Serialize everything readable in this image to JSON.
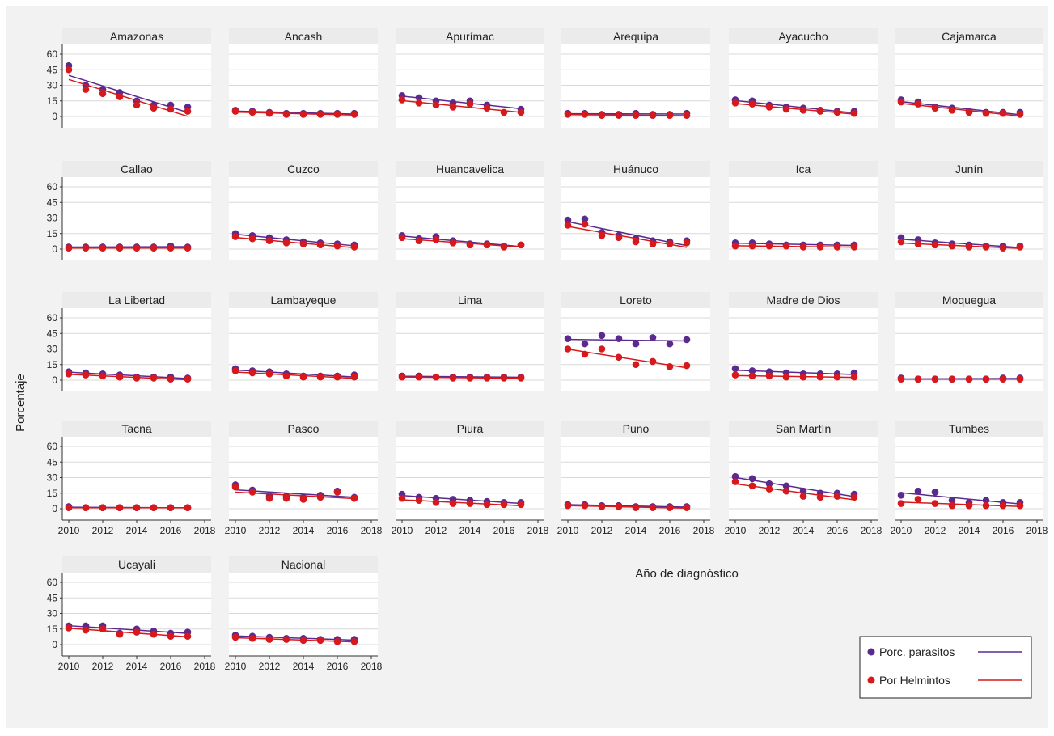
{
  "colors": {
    "background": "#f2f2f2",
    "panel": "#ffffff",
    "strip": "#ebebeb",
    "gridline": "#d9d9d9",
    "parasitos": "#5b2a8f",
    "helmintos": "#d7191c"
  },
  "chart_data": {
    "type": "scatter",
    "facets": true,
    "xlabel": "Año de diagnóstico",
    "ylabel": "Porcentaje",
    "xlim": [
      2010,
      2018
    ],
    "ylim": [
      0,
      60
    ],
    "xticks": [
      "2010",
      "2012",
      "2014",
      "2016",
      "2018"
    ],
    "yticks": [
      "0",
      "15",
      "30",
      "45",
      "60"
    ],
    "x": [
      2010,
      2011,
      2012,
      2013,
      2014,
      2015,
      2016,
      2017
    ],
    "legend": [
      {
        "label": "Porc. parasitos",
        "series": "parasitos"
      },
      {
        "label": "Por Helmintos",
        "series": "helmintos"
      }
    ],
    "legend_position": "bottom-right",
    "panels": [
      {
        "name": "Amazonas",
        "parasitos": [
          49,
          30,
          26,
          23,
          15,
          11,
          11,
          9
        ],
        "helmintos": [
          45,
          26,
          22,
          19,
          11,
          8,
          7,
          5
        ]
      },
      {
        "name": "Ancash",
        "parasitos": [
          6,
          5,
          4,
          3,
          3,
          3,
          3,
          3
        ],
        "helmintos": [
          5,
          4,
          3,
          2,
          2,
          2,
          2,
          2
        ]
      },
      {
        "name": "Apurímac",
        "parasitos": [
          20,
          18,
          15,
          13,
          15,
          11,
          null,
          7
        ],
        "helmintos": [
          16,
          13,
          11,
          9,
          12,
          8,
          4,
          4
        ]
      },
      {
        "name": "Arequipa",
        "parasitos": [
          3,
          3,
          2,
          2,
          3,
          2,
          2,
          3
        ],
        "helmintos": [
          2,
          2,
          1,
          1,
          1,
          1,
          1,
          1
        ]
      },
      {
        "name": "Ayacucho",
        "parasitos": [
          16,
          15,
          11,
          9,
          8,
          6,
          5,
          5
        ],
        "helmintos": [
          13,
          12,
          9,
          7,
          6,
          5,
          4,
          3
        ]
      },
      {
        "name": "Cajamarca",
        "parasitos": [
          16,
          14,
          9,
          8,
          5,
          4,
          4,
          4
        ],
        "helmintos": [
          14,
          12,
          8,
          6,
          4,
          3,
          3,
          2
        ]
      },
      {
        "name": "Callao",
        "parasitos": [
          2,
          2,
          2,
          2,
          2,
          2,
          3,
          2
        ],
        "helmintos": [
          1,
          1,
          1,
          1,
          1,
          1,
          1,
          1
        ]
      },
      {
        "name": "Cuzco",
        "parasitos": [
          15,
          13,
          11,
          9,
          7,
          6,
          5,
          4
        ],
        "helmintos": [
          12,
          10,
          8,
          6,
          5,
          4,
          3,
          2
        ]
      },
      {
        "name": "Huancavelica",
        "parasitos": [
          13,
          10,
          12,
          8,
          5,
          5,
          3,
          4
        ],
        "helmintos": [
          11,
          8,
          9,
          6,
          4,
          4,
          2,
          4
        ]
      },
      {
        "name": "Huánuco",
        "parasitos": [
          28,
          29,
          16,
          13,
          10,
          8,
          7,
          8
        ],
        "helmintos": [
          23,
          24,
          13,
          11,
          7,
          5,
          5,
          6
        ]
      },
      {
        "name": "Ica",
        "parasitos": [
          6,
          6,
          5,
          4,
          4,
          4,
          4,
          4
        ],
        "helmintos": [
          3,
          3,
          3,
          3,
          2,
          2,
          2,
          2
        ]
      },
      {
        "name": "Junín",
        "parasitos": [
          11,
          9,
          6,
          5,
          4,
          3,
          3,
          3
        ],
        "helmintos": [
          7,
          5,
          4,
          3,
          2,
          2,
          1,
          2
        ]
      },
      {
        "name": "La Libertad",
        "parasitos": [
          8,
          7,
          6,
          5,
          3,
          3,
          3,
          2
        ],
        "helmintos": [
          6,
          5,
          4,
          3,
          2,
          2,
          1,
          1
        ]
      },
      {
        "name": "Lambayeque",
        "parasitos": [
          11,
          9,
          8,
          6,
          4,
          4,
          4,
          5
        ],
        "helmintos": [
          9,
          7,
          6,
          4,
          3,
          3,
          3,
          3
        ]
      },
      {
        "name": "Lima",
        "parasitos": [
          4,
          4,
          3,
          3,
          3,
          3,
          3,
          3
        ],
        "helmintos": [
          3,
          3,
          3,
          2,
          2,
          2,
          2,
          2
        ]
      },
      {
        "name": "Loreto",
        "parasitos": [
          40,
          35,
          43,
          40,
          35,
          41,
          35,
          39
        ],
        "helmintos": [
          30,
          25,
          30,
          22,
          15,
          18,
          13,
          14
        ]
      },
      {
        "name": "Madre de Dios",
        "parasitos": [
          11,
          9,
          8,
          7,
          6,
          6,
          6,
          7
        ],
        "helmintos": [
          5,
          4,
          4,
          3,
          3,
          3,
          3,
          3
        ]
      },
      {
        "name": "Moquegua",
        "parasitos": [
          2,
          1,
          1,
          1,
          1,
          1,
          2,
          2
        ],
        "helmintos": [
          1,
          1,
          1,
          1,
          1,
          1,
          1,
          1
        ]
      },
      {
        "name": "Tacna",
        "parasitos": [
          2,
          1,
          1,
          1,
          1,
          1,
          1,
          1
        ],
        "helmintos": [
          1,
          1,
          1,
          1,
          1,
          1,
          1,
          1
        ]
      },
      {
        "name": "Pasco",
        "parasitos": [
          23,
          18,
          12,
          12,
          11,
          13,
          17,
          11
        ],
        "helmintos": [
          21,
          16,
          10,
          10,
          9,
          11,
          16,
          10
        ]
      },
      {
        "name": "Piura",
        "parasitos": [
          14,
          11,
          10,
          9,
          8,
          7,
          6,
          6
        ],
        "helmintos": [
          10,
          8,
          6,
          5,
          5,
          4,
          4,
          4
        ]
      },
      {
        "name": "Puno",
        "parasitos": [
          4,
          4,
          3,
          3,
          2,
          2,
          2,
          2
        ],
        "helmintos": [
          3,
          3,
          2,
          2,
          1,
          1,
          1,
          1
        ]
      },
      {
        "name": "San Martín",
        "parasitos": [
          31,
          29,
          24,
          22,
          17,
          15,
          15,
          14
        ],
        "helmintos": [
          26,
          22,
          19,
          17,
          12,
          11,
          12,
          11
        ]
      },
      {
        "name": "Tumbes",
        "parasitos": [
          13,
          17,
          16,
          8,
          6,
          8,
          6,
          6
        ],
        "helmintos": [
          5,
          9,
          5,
          3,
          3,
          3,
          3,
          3
        ]
      },
      {
        "name": "Ucayali",
        "parasitos": [
          18,
          18,
          18,
          11,
          15,
          13,
          11,
          12
        ],
        "helmintos": [
          16,
          14,
          15,
          10,
          12,
          10,
          8,
          8
        ]
      },
      {
        "name": "Nacional",
        "parasitos": [
          9,
          8,
          7,
          6,
          6,
          5,
          5,
          5
        ],
        "helmintos": [
          7,
          6,
          5,
          5,
          4,
          4,
          3,
          3
        ]
      }
    ]
  }
}
